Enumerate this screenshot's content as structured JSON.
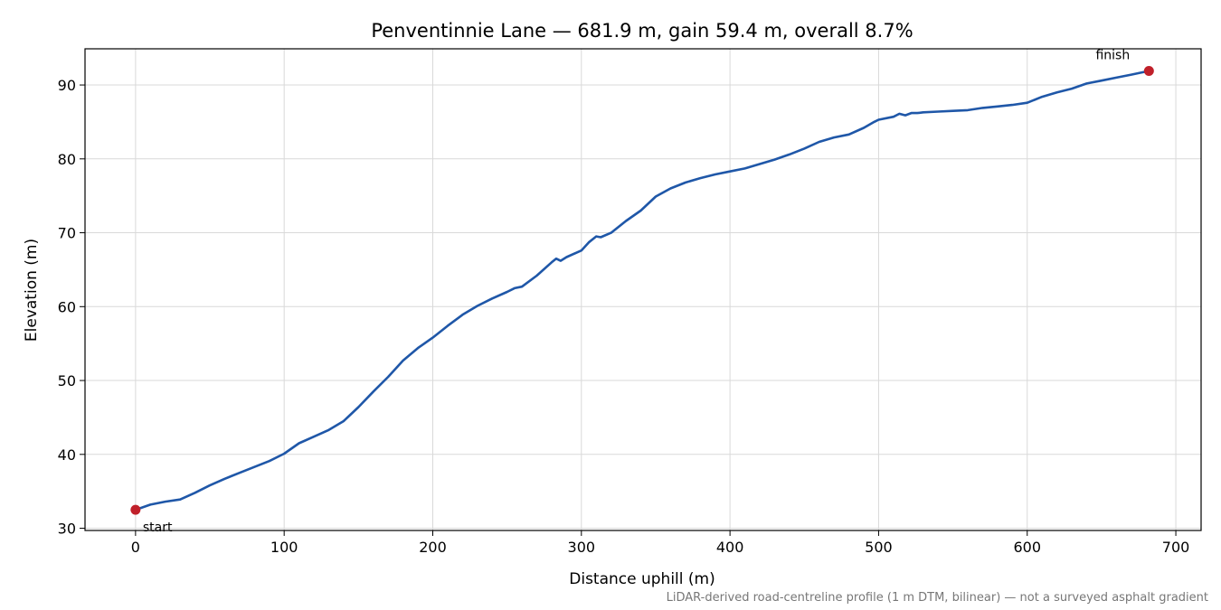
{
  "chart_data": {
    "type": "line",
    "title": "Penventinnie Lane — 681.9 m, gain 59.4 m, overall 8.7%",
    "xlabel": "Distance uphill (m)",
    "ylabel": "Elevation (m)",
    "xlim": [
      -34,
      717
    ],
    "ylim": [
      29.7,
      94.9
    ],
    "xticks": [
      0,
      100,
      200,
      300,
      400,
      500,
      600,
      700
    ],
    "yticks": [
      30,
      40,
      50,
      60,
      70,
      80,
      90
    ],
    "grid": true,
    "footnote": "LiDAR-derived road-centreline profile (1 m DTM, bilinear) — not a surveyed asphalt gradient",
    "colors": {
      "line": "#1f57a8",
      "marker": "#c0202a"
    },
    "series": [
      {
        "x": [
          0,
          10,
          20,
          30,
          40,
          50,
          60,
          70,
          80,
          90,
          100,
          110,
          120,
          130,
          140,
          150,
          160,
          170,
          180,
          190,
          200,
          210,
          220,
          230,
          240,
          250,
          255,
          260,
          270,
          280,
          283,
          286,
          290,
          300,
          305,
          310,
          313,
          320,
          330,
          340,
          350,
          360,
          370,
          380,
          390,
          400,
          410,
          420,
          430,
          440,
          450,
          460,
          470,
          480,
          490,
          497,
          500,
          510,
          514,
          518,
          522,
          526,
          530,
          540,
          550,
          560,
          570,
          580,
          590,
          600,
          610,
          620,
          630,
          640,
          650,
          660,
          670,
          681.9
        ],
        "y": [
          32.5,
          33.2,
          33.6,
          33.9,
          34.8,
          35.8,
          36.7,
          37.5,
          38.3,
          39.1,
          40.1,
          41.5,
          42.4,
          43.3,
          44.5,
          46.4,
          48.5,
          50.5,
          52.7,
          54.4,
          55.8,
          57.4,
          58.9,
          60.1,
          61.1,
          62.0,
          62.5,
          62.7,
          64.2,
          66.0,
          66.5,
          66.2,
          66.7,
          67.6,
          68.7,
          69.5,
          69.4,
          70.0,
          71.6,
          73.0,
          74.9,
          76.0,
          76.8,
          77.4,
          77.9,
          78.3,
          78.7,
          79.3,
          79.9,
          80.6,
          81.4,
          82.3,
          82.9,
          83.3,
          84.2,
          85.0,
          85.3,
          85.7,
          86.1,
          85.9,
          86.2,
          86.2,
          86.3,
          86.4,
          86.5,
          86.6,
          86.9,
          87.1,
          87.3,
          87.6,
          88.4,
          89.0,
          89.5,
          90.2,
          90.6,
          91.0,
          91.4,
          91.9
        ]
      }
    ],
    "annotations": [
      {
        "text": "start",
        "x": 0,
        "y": 32.5
      },
      {
        "text": "finish",
        "x": 681.9,
        "y": 91.9
      }
    ]
  }
}
